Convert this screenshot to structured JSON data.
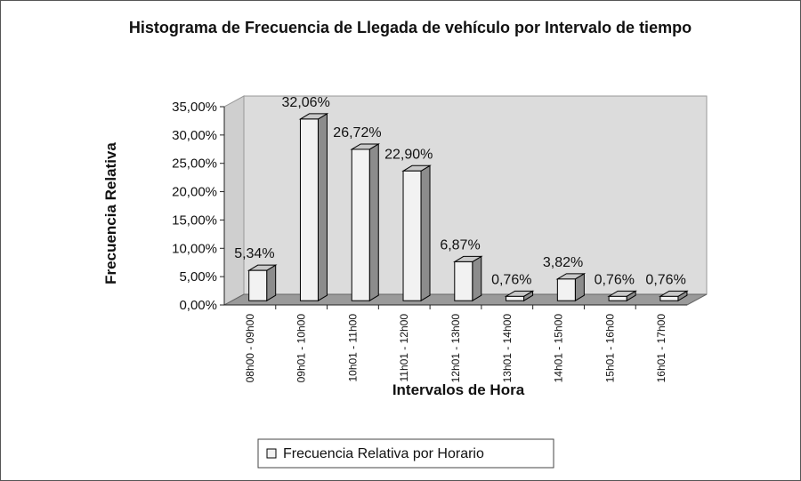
{
  "chart_data": {
    "type": "bar3d",
    "title": "Histograma de Frecuencia de Llegada de vehículo por Intervalo de tiempo",
    "ylabel": "Frecuencia Relativa",
    "xlabel": "Intervalos de Hora",
    "categories": [
      "08h00 - 09h00",
      "09h01 - 10h00",
      "10h01 - 11h00",
      "11h01 - 12h00",
      "12h01 - 13h00",
      "13h01 - 14h00",
      "14h01 - 15h00",
      "15h01 - 16h00",
      "16h01 - 17h00"
    ],
    "series": [
      {
        "name": "Frecuencia Relativa por Horario",
        "color": "#f2f2f2",
        "values": [
          5.34,
          32.06,
          26.72,
          22.9,
          6.87,
          0.76,
          3.82,
          0.76,
          0.76
        ],
        "value_labels": [
          "5,34%",
          "32,06%",
          "26,72%",
          "22,90%",
          "6,87%",
          "0,76%",
          "3,82%",
          "0,76%",
          "0,76%"
        ]
      }
    ],
    "ylim": [
      0,
      35
    ],
    "yticks": [
      {
        "value": 0,
        "label": "0,00%"
      },
      {
        "value": 5,
        "label": "5,00%"
      },
      {
        "value": 10,
        "label": "10,00%"
      },
      {
        "value": 15,
        "label": "15,00%"
      },
      {
        "value": 20,
        "label": "20,00%"
      },
      {
        "value": 25,
        "label": "25,00%"
      },
      {
        "value": 30,
        "label": "30,00%"
      },
      {
        "value": 35,
        "label": "35,00%"
      }
    ],
    "grid": false,
    "legend": "bottom"
  }
}
